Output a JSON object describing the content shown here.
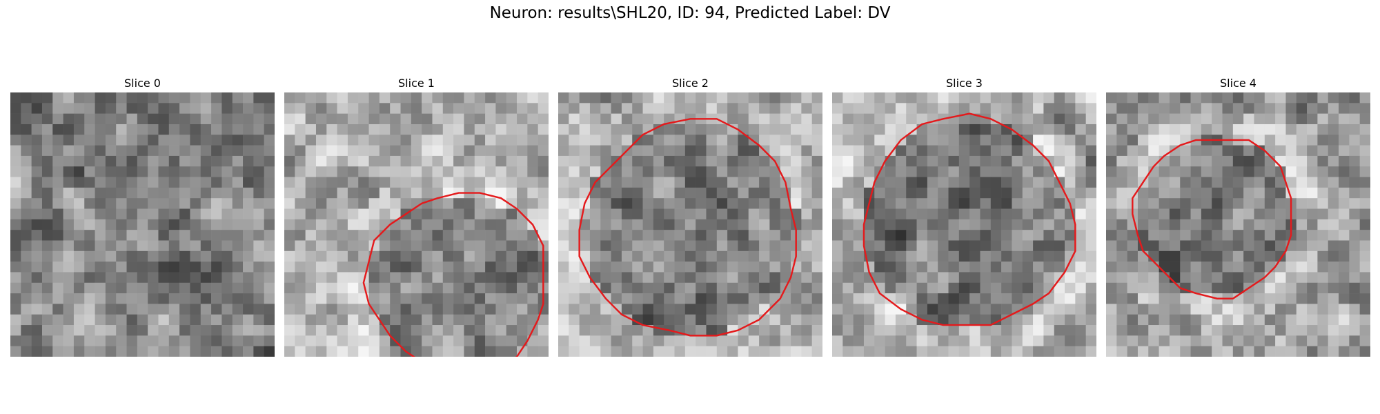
{
  "figure": {
    "title": "Neuron: results\\SHL20, ID: 94, Predicted Label: DV"
  },
  "colors": {
    "contour": "#e41a1c",
    "background": "#ffffff"
  },
  "panels": [
    {
      "title": "Slice 0",
      "seed": 11,
      "base": 128,
      "dark_center": 0,
      "contour": null
    },
    {
      "title": "Slice 1",
      "seed": 23,
      "base": 175,
      "dark_center": 0.6,
      "contour": {
        "center": [
          16.5,
          18.0
        ],
        "radius": 8.5
      }
    },
    {
      "title": "Slice 2",
      "seed": 37,
      "base": 165,
      "dark_center": 0.55,
      "contour": {
        "center": [
          12.5,
          13.0
        ],
        "radius": 10.2
      }
    },
    {
      "title": "Slice 3",
      "seed": 51,
      "base": 165,
      "dark_center": 0.6,
      "contour": {
        "center": [
          12.8,
          12.5
        ],
        "radius": 10.0
      }
    },
    {
      "title": "Slice 4",
      "seed": 67,
      "base": 160,
      "dark_center": 0.5,
      "contour": {
        "center": [
          10.3,
          11.7
        ],
        "radius": 7.5
      }
    }
  ],
  "grid_cells": 25
}
